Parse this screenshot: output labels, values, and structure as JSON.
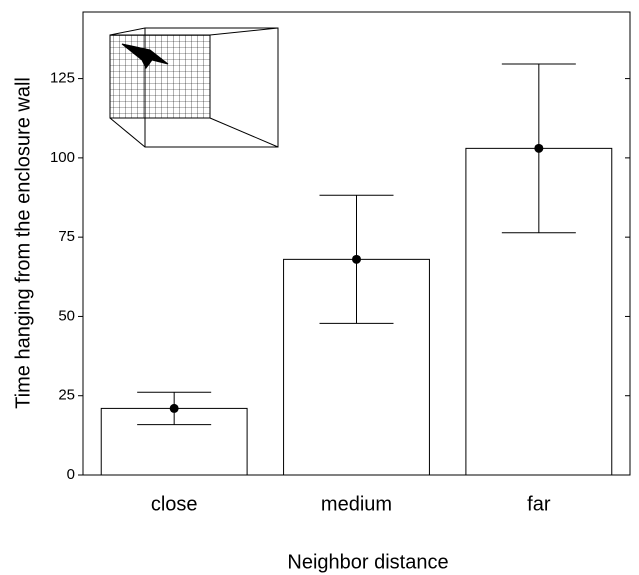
{
  "chart_data": {
    "type": "bar",
    "categories": [
      "close",
      "medium",
      "far"
    ],
    "values": [
      21,
      68,
      103
    ],
    "errors": [
      5.1,
      20.2,
      26.6
    ],
    "color": "#ffffff",
    "x_label": "Neighbor distance",
    "y_label": "Time hanging from the enclosure wall",
    "ylim": [
      0,
      146
    ],
    "yticks": [
      0,
      25,
      50,
      75,
      100,
      125
    ]
  }
}
